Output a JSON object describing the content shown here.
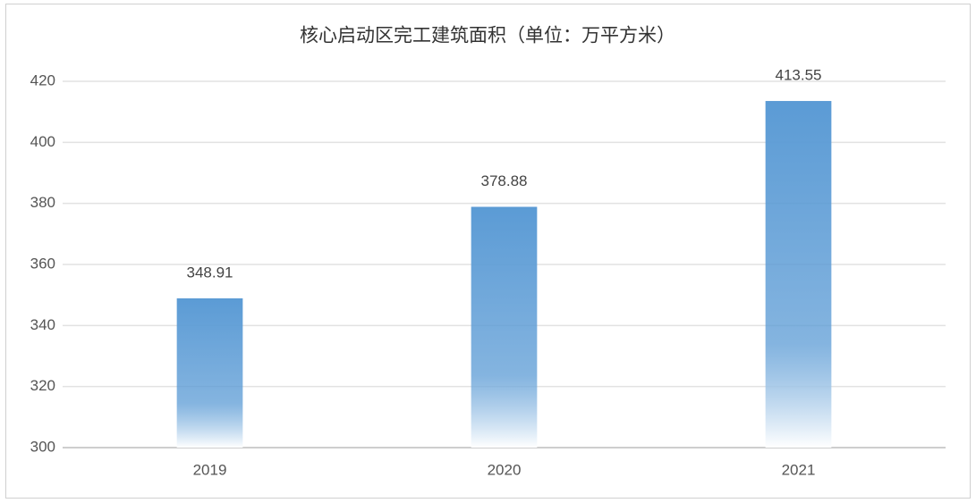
{
  "chart_data": {
    "type": "bar",
    "title": "核心启动区完工建筑面积（单位：万平方米）",
    "categories": [
      "2019",
      "2020",
      "2021"
    ],
    "values": [
      348.91,
      378.88,
      413.55
    ],
    "color": "#5b9bd5",
    "ylim": [
      300,
      420
    ],
    "yticks": [
      300,
      320,
      340,
      360,
      380,
      400,
      420
    ],
    "grid": true
  }
}
